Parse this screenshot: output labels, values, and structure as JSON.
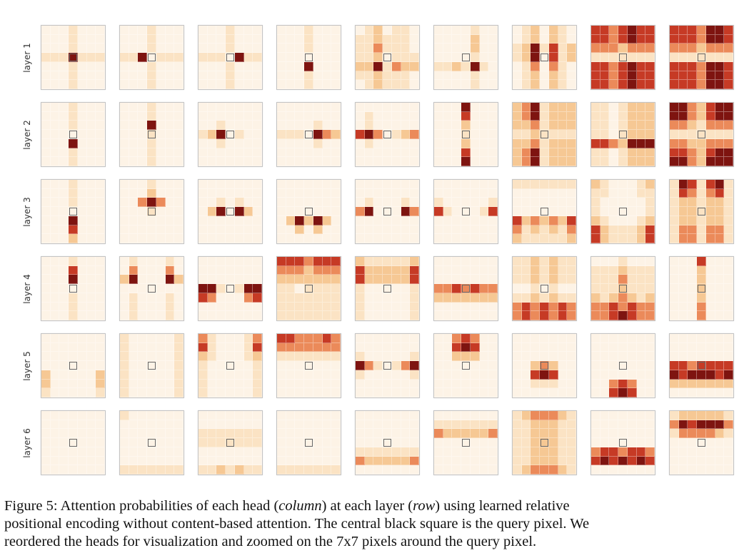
{
  "palette": [
    "#fdf3e6",
    "#fbe3c4",
    "#f6c894",
    "#eb8a5a",
    "#c63a25",
    "#7e1410"
  ],
  "chart_data": {
    "type": "heatmap",
    "title": "Attention probabilities of each head (column) at each layer (row)",
    "row_labels": [
      "layer 1",
      "layer 2",
      "layer 3",
      "layer 4",
      "layer 5",
      "layer 6"
    ],
    "grid_size": "7x7",
    "value_scale": "0 (low) to 5 (high) relative attention probability",
    "query_pixel": [
      3,
      3
    ],
    "panels": [
      [
        [
          "0001000",
          "0001000",
          "0001000",
          "1115111",
          "0001000",
          "0001000",
          "0001000"
        ],
        [
          "0001000",
          "0001000",
          "0001000",
          "1150111",
          "0001000",
          "0001000",
          "0001000"
        ],
        [
          "0001000",
          "0001000",
          "0001000",
          "1110511",
          "0001000",
          "0001000",
          "0001000"
        ],
        [
          "0001000",
          "0001000",
          "0001000",
          "0000000",
          "0005000",
          "0001000",
          "0001000"
        ],
        [
          "0120110",
          "1121110",
          "1131110",
          "1120111",
          "2251322",
          "1121110",
          "0121110"
        ],
        [
          "0000100",
          "0000200",
          "0000200",
          "0000100",
          "1121510",
          "0000100",
          "0000100"
        ],
        [
          "0120210",
          "0120210",
          "1251412",
          "1250412",
          "0130310",
          "0120210",
          "0120210"
        ],
        [
          "4434544",
          "4434544",
          "3332333",
          "1111111",
          "4434544",
          "4434544",
          "4434544"
        ],
        [
          "4443554",
          "4443554",
          "3332333",
          "1111111",
          "4443554",
          "4443554",
          "4443554"
        ]
      ],
      [
        [
          "0001000",
          "0001000",
          "0001000",
          "0000000",
          "0005000",
          "0001000",
          "0001000"
        ],
        [
          "0001000",
          "0001000",
          "0005000",
          "0001000",
          "0001000",
          "0001000",
          "0001000"
        ],
        [
          "0000000",
          "0000000",
          "0010000",
          "1250100",
          "0010000",
          "0000000",
          "0000000"
        ],
        [
          "0000000",
          "0000000",
          "0000100",
          "1110532",
          "0000100",
          "0000000",
          "0000000"
        ],
        [
          "0000000",
          "0100000",
          "0100000",
          "4530123",
          "0100000",
          "0000000",
          "0000000"
        ],
        [
          "0005000",
          "0004000",
          "0002000",
          "0001000",
          "0002000",
          "0004000",
          "0005000"
        ],
        [
          "2351222",
          "2351222",
          "2231222",
          "1121111",
          "2231222",
          "2351222",
          "2351222"
        ],
        [
          "1101222",
          "1101222",
          "1101222",
          "1101222",
          "4432555",
          "1101222",
          "1101222"
        ],
        [
          "5532455",
          "5532455",
          "3321333",
          "1111111",
          "3322333",
          "4432455",
          "5532555"
        ]
      ],
      [
        [
          "0001000",
          "0001000",
          "0001000",
          "0000000",
          "0005000",
          "0004000",
          "0002000"
        ],
        [
          "0001000",
          "0002000",
          "0035300",
          "0001000",
          "0000000",
          "0000000",
          "0000000"
        ],
        [
          "0000000",
          "0000000",
          "0010100",
          "0250520",
          "0000000",
          "0000000",
          "0000000"
        ],
        [
          "0000000",
          "0000000",
          "0000000",
          "0000000",
          "0252520",
          "0020200",
          "0000000"
        ],
        [
          "0000000",
          "0000000",
          "0100010",
          "3500053",
          "0000000",
          "0000000",
          "0000000"
        ],
        [
          "0000000",
          "0000000",
          "1000001",
          "4100014",
          "0000000",
          "0000000",
          "0000000"
        ],
        [
          "1111111",
          "0000000",
          "0000000",
          "0000000",
          "4232324",
          "3121213",
          "2111112"
        ],
        [
          "2100012",
          "1100011",
          "1000001",
          "1000001",
          "2100012",
          "4211124",
          "4211124"
        ],
        [
          "1541451",
          "1431341",
          "1221221",
          "1221221",
          "1221221",
          "1331331",
          "1331331"
        ]
      ],
      [
        [
          "0001000",
          "0004000",
          "0005000",
          "0000000",
          "0001000",
          "0001000",
          "0001000"
        ],
        [
          "0100010",
          "0300030",
          "2500052",
          "0000000",
          "0100010",
          "0100010",
          "0100010"
        ],
        [
          "0000000",
          "0000000",
          "0000000",
          "5510155",
          "4300034",
          "0000000",
          "0000000"
        ],
        [
          "4443444",
          "3332333",
          "2222222",
          "1101111",
          "1111111",
          "1111111",
          "1111111"
        ],
        [
          "2111112",
          "4222224",
          "4222224",
          "1000001",
          "1000001",
          "1000001",
          "1000001"
        ],
        [
          "0000000",
          "0000000",
          "0000000",
          "3343433",
          "2222222",
          "0000000",
          "0000000"
        ],
        [
          "1121211",
          "1121211",
          "1121211",
          "0010100",
          "1121211",
          "3434343",
          "3434343"
        ],
        [
          "0001000",
          "1112111",
          "1113111",
          "1112111",
          "2123212",
          "3343433",
          "3345433"
        ],
        [
          "0004000",
          "0002000",
          "0002000",
          "0002000",
          "0002000",
          "0003000",
          "0003000"
        ]
      ],
      [
        [
          "0000000",
          "0000000",
          "0000000",
          "0000000",
          "2000002",
          "2000002",
          "1000001"
        ],
        [
          "1000001",
          "1000001",
          "1000001",
          "1000001",
          "1000001",
          "1000001",
          "1000001"
        ],
        [
          "3100013",
          "4100014",
          "2100012",
          "1000001",
          "1000001",
          "1000001",
          "1000001"
        ],
        [
          "4433343",
          "3333333",
          "1111111",
          "0000000",
          "0000000",
          "0000000",
          "0000000"
        ],
        [
          "0000000",
          "0000000",
          "1000001",
          "5310135",
          "1000001",
          "0000000",
          "0000000"
        ],
        [
          "0034300",
          "0045400",
          "0022200",
          "0000000",
          "0000000",
          "0000000",
          "0000000"
        ],
        [
          "0000000",
          "0000000",
          "0000000",
          "0023200",
          "0045400",
          "0011100",
          "0000000"
        ],
        [
          "0000000",
          "0000000",
          "0000000",
          "0000000",
          "0000000",
          "0034300",
          "0045400"
        ],
        [
          "0000000",
          "0000000",
          "0000000",
          "4434444",
          "5455545",
          "2222222",
          "0000000"
        ]
      ],
      [
        [
          "0000000",
          "0000000",
          "0000000",
          "0000000",
          "0000000",
          "0000000",
          "0000000"
        ],
        [
          "1000000",
          "0000000",
          "0000000",
          "0000000",
          "0000000",
          "0000000",
          "1111111"
        ],
        [
          "0000000",
          "0000000",
          "1111111",
          "1111111",
          "0000000",
          "0000000",
          "1121211"
        ],
        [
          "0000000",
          "0000000",
          "0000000",
          "0000000",
          "0000000",
          "0000000",
          "1111111"
        ],
        [
          "0000000",
          "0000000",
          "0000000",
          "0000000",
          "1111111",
          "3222223",
          "0000000"
        ],
        [
          "0000000",
          "1111111",
          "3222223",
          "0000000",
          "0000000",
          "0000000",
          "0000000"
        ],
        [
          "1233321",
          "1122211",
          "1122211",
          "1122211",
          "1122211",
          "1122211",
          "1233321"
        ],
        [
          "0000000",
          "0000000",
          "0000000",
          "0000000",
          "3443443",
          "4545454",
          "0000000"
        ],
        [
          "1222221",
          "3545553",
          "1333321",
          "0000000",
          "0000000",
          "0000000",
          "0000000"
        ]
      ]
    ]
  },
  "caption": {
    "lines": [
      [
        "Figure 5:  Attention probabilities of each head (",
        "column",
        ") at each layer (",
        "row",
        ") using learned relative"
      ],
      [
        "positional encoding without content-based attention. The central black square is the query pixel. We"
      ],
      [
        "reordered the heads for visualization and zoomed on the 7x7 pixels around the query pixel."
      ]
    ]
  }
}
